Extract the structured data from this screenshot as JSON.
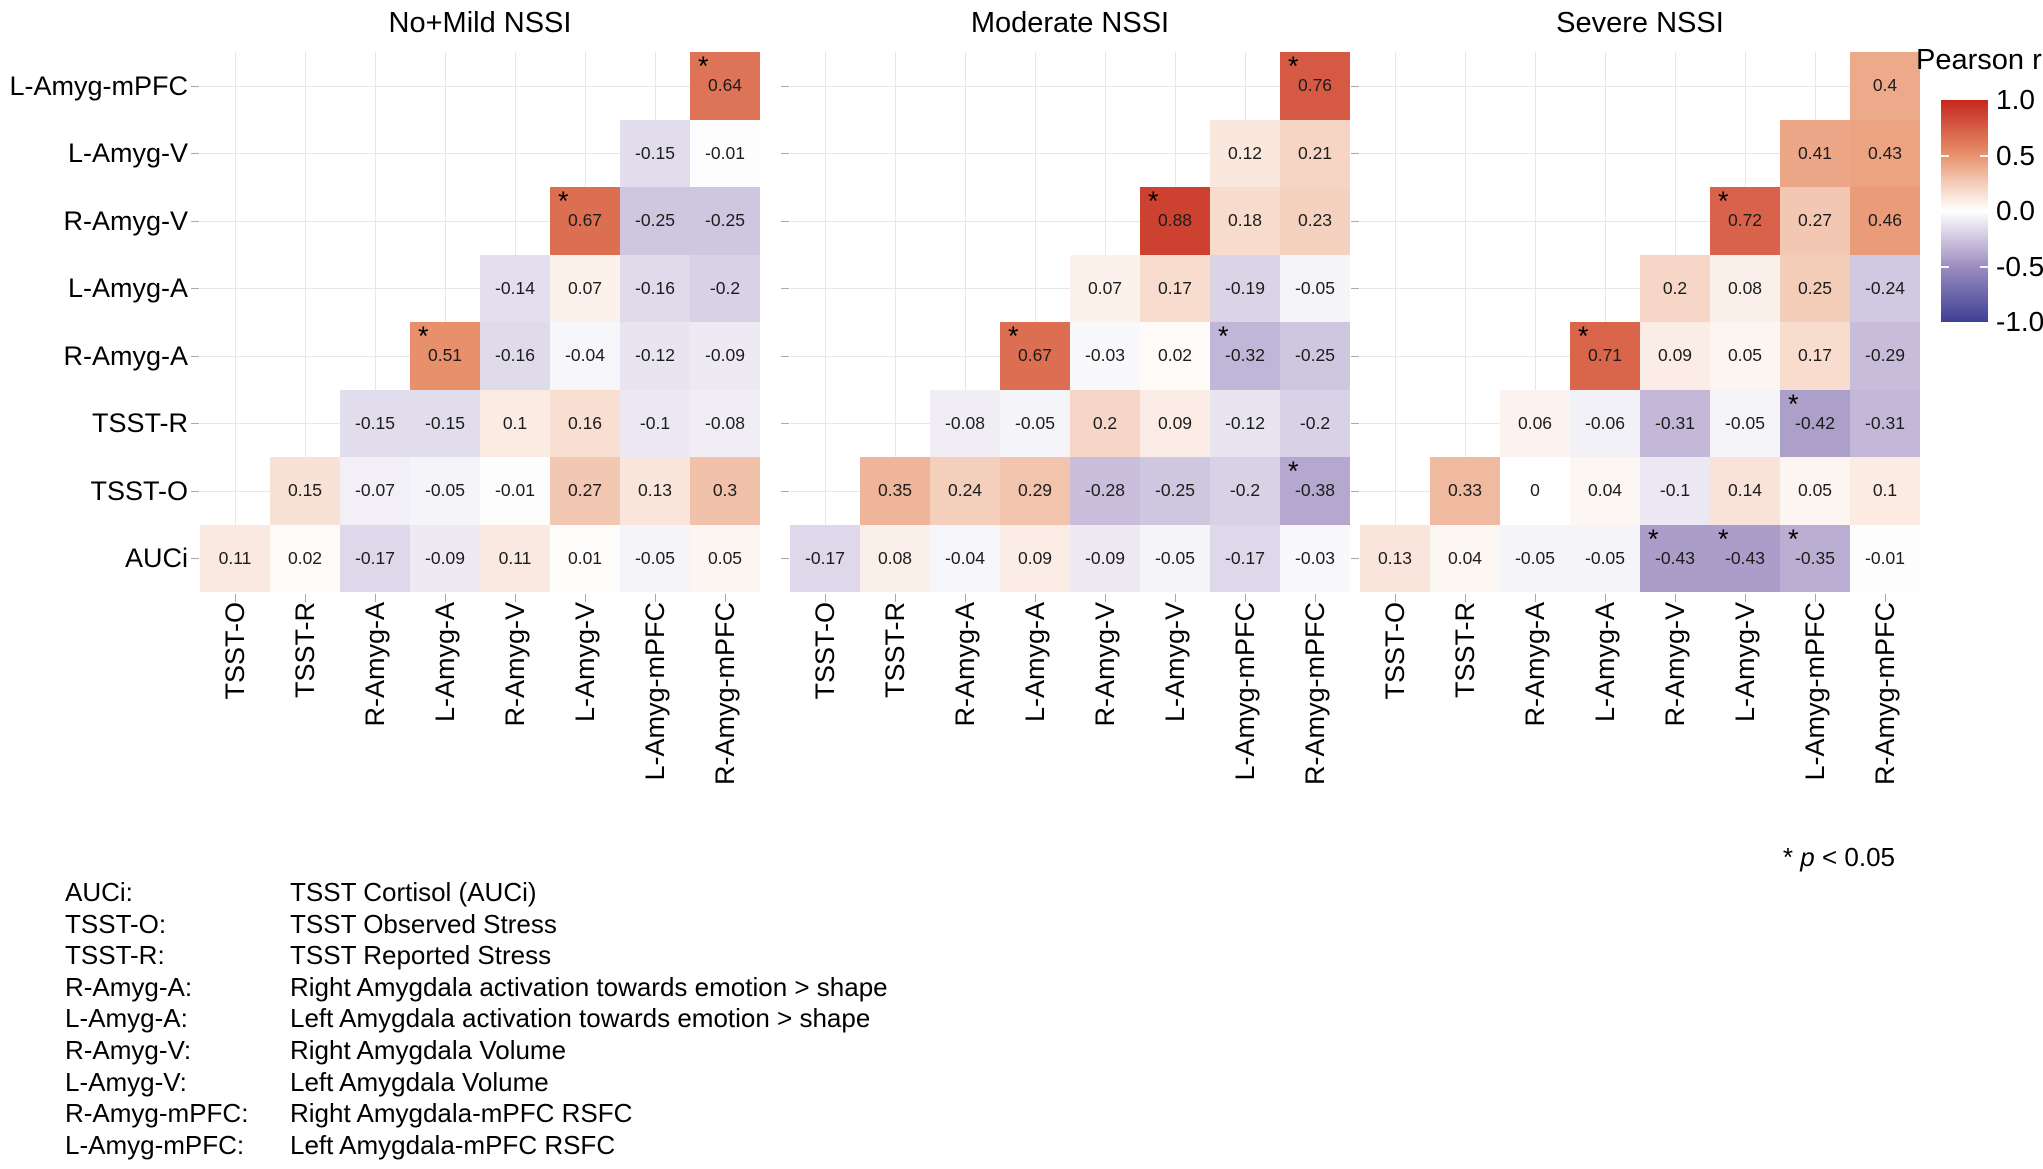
{
  "figure": {
    "background": "#ffffff",
    "legend": {
      "title": "Pearson r",
      "ticks": [
        "1.0",
        "0.5",
        "0.0",
        "-0.5",
        "-1.0"
      ]
    },
    "significance_note": {
      "star": "*",
      "variable": "p",
      "rest": "< 0.05",
      "full_text": "* p < 0.05"
    },
    "key": {
      "entries": [
        {
          "abbr": "AUCi:",
          "definition": "TSST Cortisol (AUCi)"
        },
        {
          "abbr": "TSST-O:",
          "definition": "TSST Observed Stress"
        },
        {
          "abbr": "TSST-R:",
          "definition": "TSST Reported Stress"
        },
        {
          "abbr": "R-Amyg-A:",
          "definition": "Right Amygdala activation towards emotion > shape"
        },
        {
          "abbr": "L-Amyg-A:",
          "definition": "Left Amygdala activation towards emotion > shape"
        },
        {
          "abbr": "R-Amyg-V:",
          "definition": "Right Amygdala Volume"
        },
        {
          "abbr": "L-Amyg-V:",
          "definition": "Left Amygdala Volume"
        },
        {
          "abbr": "R-Amyg-mPFC:",
          "definition": "Right Amygdala-mPFC RSFC"
        },
        {
          "abbr": "L-Amyg-mPFC:",
          "definition": "Left Amygdala-mPFC RSFC"
        }
      ]
    }
  },
  "chart_data": {
    "type": "heatmap",
    "subtype": "triangular-correlation-matrix",
    "value_range": [
      -1,
      1
    ],
    "grid": true,
    "legend_position": "right",
    "row_labels": [
      "L-Amyg-mPFC",
      "L-Amyg-V",
      "R-Amyg-V",
      "L-Amyg-A",
      "R-Amyg-A",
      "TSST-R",
      "TSST-O",
      "AUCi"
    ],
    "col_labels": [
      "TSST-O",
      "TSST-R",
      "R-Amyg-A",
      "L-Amyg-A",
      "R-Amyg-V",
      "L-Amyg-V",
      "L-Amyg-mPFC",
      "R-Amyg-mPFC"
    ],
    "colormap_stops": [
      {
        "v": -1.0,
        "color": "#3e4095"
      },
      {
        "v": -0.5,
        "color": "#9b8dc0"
      },
      {
        "v": -0.25,
        "color": "#cfc6e0"
      },
      {
        "v": 0.0,
        "color": "#ffffff"
      },
      {
        "v": 0.25,
        "color": "#f4cdb9"
      },
      {
        "v": 0.5,
        "color": "#e8926d"
      },
      {
        "v": 1.0,
        "color": "#c5271d"
      }
    ],
    "panels": [
      {
        "title": "No+Mild NSSI",
        "values": [
          [
            null,
            null,
            null,
            null,
            null,
            null,
            null,
            "0.64"
          ],
          [
            null,
            null,
            null,
            null,
            null,
            null,
            "-0.15",
            "-0.01"
          ],
          [
            null,
            null,
            null,
            null,
            null,
            "0.67",
            "-0.25",
            "-0.25"
          ],
          [
            null,
            null,
            null,
            null,
            "-0.14",
            "0.07",
            "-0.16",
            "-0.2"
          ],
          [
            null,
            null,
            null,
            "0.51",
            "-0.16",
            "-0.04",
            "-0.12",
            "-0.09"
          ],
          [
            null,
            null,
            "-0.15",
            "-0.15",
            "0.1",
            "0.16",
            "-0.1",
            "-0.08"
          ],
          [
            null,
            "0.15",
            "-0.07",
            "-0.05",
            "-0.01",
            "0.27",
            "0.13",
            "0.3"
          ],
          [
            "0.11",
            "0.02",
            "-0.17",
            "-0.09",
            "0.11",
            "0.01",
            "-0.05",
            "0.05"
          ]
        ],
        "significant": [
          [
            0,
            7
          ],
          [
            2,
            5
          ],
          [
            4,
            3
          ]
        ]
      },
      {
        "title": "Moderate NSSI",
        "values": [
          [
            null,
            null,
            null,
            null,
            null,
            null,
            null,
            "0.76"
          ],
          [
            null,
            null,
            null,
            null,
            null,
            null,
            "0.12",
            "0.21"
          ],
          [
            null,
            null,
            null,
            null,
            null,
            "0.88",
            "0.18",
            "0.23"
          ],
          [
            null,
            null,
            null,
            null,
            "0.07",
            "0.17",
            "-0.19",
            "-0.05"
          ],
          [
            null,
            null,
            null,
            "0.67",
            "-0.03",
            "0.02",
            "-0.32",
            "-0.25"
          ],
          [
            null,
            null,
            "-0.08",
            "-0.05",
            "0.2",
            "0.09",
            "-0.12",
            "-0.2"
          ],
          [
            null,
            "0.35",
            "0.24",
            "0.29",
            "-0.28",
            "-0.25",
            "-0.2",
            "-0.38"
          ],
          [
            "-0.17",
            "0.08",
            "-0.04",
            "0.09",
            "-0.09",
            "-0.05",
            "-0.17",
            "-0.03"
          ]
        ],
        "significant": [
          [
            0,
            7
          ],
          [
            2,
            5
          ],
          [
            4,
            3
          ],
          [
            4,
            6
          ],
          [
            6,
            7
          ]
        ]
      },
      {
        "title": "Severe NSSI",
        "values": [
          [
            null,
            null,
            null,
            null,
            null,
            null,
            null,
            "0.4"
          ],
          [
            null,
            null,
            null,
            null,
            null,
            null,
            "0.41",
            "0.43"
          ],
          [
            null,
            null,
            null,
            null,
            null,
            "0.72",
            "0.27",
            "0.46"
          ],
          [
            null,
            null,
            null,
            null,
            "0.2",
            "0.08",
            "0.25",
            "-0.24"
          ],
          [
            null,
            null,
            null,
            "0.71",
            "0.09",
            "0.05",
            "0.17",
            "-0.29"
          ],
          [
            null,
            null,
            "0.06",
            "-0.06",
            "-0.31",
            "-0.05",
            "-0.42",
            "-0.31"
          ],
          [
            null,
            "0.33",
            "0",
            "0.04",
            "-0.1",
            "0.14",
            "0.05",
            "0.1"
          ],
          [
            "0.13",
            "0.04",
            "-0.05",
            "-0.05",
            "-0.43",
            "-0.43",
            "-0.35",
            "-0.01"
          ]
        ],
        "significant": [
          [
            2,
            5
          ],
          [
            4,
            3
          ],
          [
            5,
            6
          ],
          [
            7,
            4
          ],
          [
            7,
            5
          ],
          [
            7,
            6
          ]
        ]
      }
    ]
  }
}
